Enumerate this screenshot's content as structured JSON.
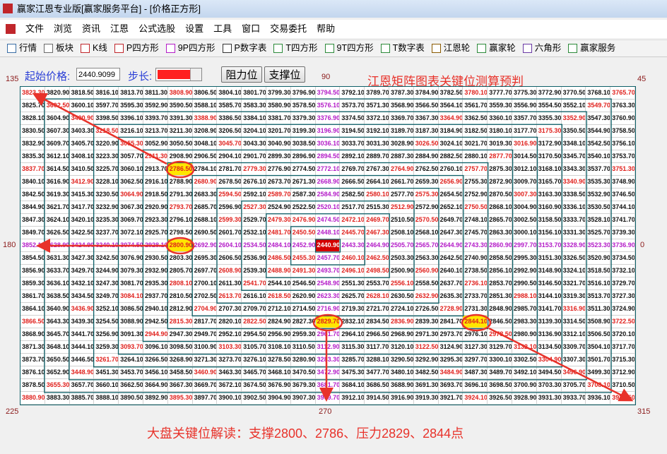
{
  "window": {
    "title": "赢家江恩专业版[赢家服务平台] - [价格正方形]"
  },
  "menu": [
    "文件",
    "浏览",
    "资讯",
    "江恩",
    "公式选股",
    "设置",
    "工具",
    "窗口",
    "交易委托",
    "帮助"
  ],
  "toolbar": [
    "行情",
    "板块",
    "K线",
    "P四方形",
    "9P四方形",
    "P数字表",
    "T四方形",
    "9T四方形",
    "T数字表",
    "江恩轮",
    "赢家轮",
    "六角形",
    "赢家服务"
  ],
  "controls": {
    "start_label": "起始价格:",
    "start_value": "2440.9099",
    "step_label": "步长:",
    "resistance_button": "阻力位",
    "support_button": "支撑位"
  },
  "angles": {
    "top_left": "135",
    "top": "90",
    "top_right": "45",
    "left": "180",
    "right": "0",
    "bottom_left": "225",
    "bottom": "270",
    "bottom_right": "315"
  },
  "annotations": {
    "heading": "江恩矩阵图表关键位测算预判",
    "footer": "大盘关键位解读：支撑2800、2786、压力2829、2844点"
  },
  "colors": {
    "default": "#111111",
    "cross": "#b41cc8",
    "angle": "#e0201c",
    "spiral": "#0d6068",
    "mark": "#e8322a",
    "highlight": "#ffe600",
    "center": "#d40000"
  },
  "grid": {
    "rows": [
      [
        "3823.30",
        "3820.90",
        "3818.50",
        "3816.10",
        "3813.70",
        "3811.30",
        "3808.90",
        "3806.50",
        "3804.10",
        "3801.70",
        "3799.30",
        "3796.90",
        "3794.50",
        "3792.10",
        "3789.70",
        "3787.30",
        "3784.90",
        "3782.50",
        "3780.10",
        "3777.70",
        "3775.30",
        "3772.90",
        "3770.50",
        "3768.10",
        "3765.70"
      ],
      [
        "3825.70",
        "3602.50",
        "3600.10",
        "3597.70",
        "3595.30",
        "3592.90",
        "3590.50",
        "3588.10",
        "3585.70",
        "3583.30",
        "3580.90",
        "3578.50",
        "3576.10",
        "3573.70",
        "3571.30",
        "3568.90",
        "3566.50",
        "3564.10",
        "3561.70",
        "3559.30",
        "3556.90",
        "3554.50",
        "3552.10",
        "3549.70",
        "3763.30"
      ],
      [
        "3828.10",
        "3604.90",
        "3400.90",
        "3398.50",
        "3396.10",
        "3393.70",
        "3391.30",
        "3388.90",
        "3386.50",
        "3384.10",
        "3381.70",
        "3379.30",
        "3376.90",
        "3374.50",
        "3372.10",
        "3369.70",
        "3367.30",
        "3364.90",
        "3362.50",
        "3360.10",
        "3357.70",
        "3355.30",
        "3352.90",
        "3547.30",
        "3760.90"
      ],
      [
        "3830.50",
        "3607.30",
        "3403.30",
        "3218.50",
        "3216.10",
        "3213.70",
        "3211.30",
        "3208.90",
        "3206.50",
        "3204.10",
        "3201.70",
        "3199.30",
        "3196.90",
        "3194.50",
        "3192.10",
        "3189.70",
        "3187.30",
        "3184.90",
        "3182.50",
        "3180.10",
        "3177.70",
        "3175.30",
        "3350.50",
        "3544.90",
        "3758.50"
      ],
      [
        "3832.90",
        "3609.70",
        "3405.70",
        "3220.90",
        "3055.30",
        "3052.90",
        "3050.50",
        "3048.10",
        "3045.70",
        "3043.30",
        "3040.90",
        "3038.50",
        "3036.10",
        "3033.70",
        "3031.30",
        "3028.90",
        "3026.50",
        "3024.10",
        "3021.70",
        "3019.30",
        "3016.90",
        "3172.90",
        "3348.10",
        "3542.50",
        "3756.10"
      ],
      [
        "3835.30",
        "3612.10",
        "3408.10",
        "3223.30",
        "3057.70",
        "2911.30",
        "2908.90",
        "2906.50",
        "2904.10",
        "2901.70",
        "2899.30",
        "2896.90",
        "2894.50",
        "2892.10",
        "2889.70",
        "2887.30",
        "2884.90",
        "2882.50",
        "2880.10",
        "2877.70",
        "3014.50",
        "3170.50",
        "3345.70",
        "3540.10",
        "3753.70"
      ],
      [
        "3837.70",
        "3614.50",
        "3410.50",
        "3225.70",
        "3060.10",
        "2913.70",
        "2786.50",
        "2784.10",
        "2781.70",
        "2779.30",
        "2776.90",
        "2774.50",
        "2772.10",
        "2769.70",
        "2767.30",
        "2764.90",
        "2762.50",
        "2760.10",
        "2757.70",
        "2875.30",
        "3012.10",
        "3168.10",
        "3343.30",
        "3537.70",
        "3751.30"
      ],
      [
        "3840.10",
        "3616.90",
        "3412.90",
        "3228.10",
        "3062.50",
        "2916.10",
        "2788.90",
        "2680.90",
        "2678.50",
        "2676.10",
        "2673.70",
        "2671.30",
        "2668.90",
        "2666.50",
        "2664.10",
        "2661.70",
        "2659.30",
        "2656.90",
        "2755.30",
        "2872.90",
        "3009.70",
        "3165.70",
        "3340.90",
        "3535.30",
        "3748.90"
      ],
      [
        "3842.50",
        "3619.30",
        "3415.30",
        "3230.50",
        "3064.90",
        "2918.50",
        "2791.30",
        "2683.30",
        "2594.50",
        "2592.10",
        "2589.70",
        "2587.30",
        "2584.90",
        "2582.50",
        "2580.10",
        "2577.70",
        "2575.30",
        "2654.50",
        "2752.90",
        "2870.50",
        "3007.30",
        "3163.30",
        "3338.50",
        "3532.90",
        "3746.50"
      ],
      [
        "3844.90",
        "3621.70",
        "3417.70",
        "3232.90",
        "3067.30",
        "2920.90",
        "2793.70",
        "2685.70",
        "2596.90",
        "2527.30",
        "2524.90",
        "2522.50",
        "2520.10",
        "2517.70",
        "2515.30",
        "2512.90",
        "2572.90",
        "2652.10",
        "2750.50",
        "2868.10",
        "3004.90",
        "3160.90",
        "3336.10",
        "3530.50",
        "3744.10"
      ],
      [
        "3847.30",
        "3624.10",
        "3420.10",
        "3235.30",
        "3069.70",
        "2923.30",
        "2796.10",
        "2688.10",
        "2599.30",
        "2529.70",
        "2479.30",
        "2476.90",
        "2474.50",
        "2472.10",
        "2469.70",
        "2510.50",
        "2570.50",
        "2649.70",
        "2748.10",
        "2865.70",
        "3002.50",
        "3158.50",
        "3333.70",
        "3528.10",
        "3741.70"
      ],
      [
        "3849.70",
        "3626.50",
        "3422.50",
        "3237.70",
        "3072.10",
        "2925.70",
        "2798.50",
        "2690.50",
        "2601.70",
        "2532.10",
        "2481.70",
        "2450.50",
        "2448.10",
        "2445.70",
        "2467.30",
        "2508.10",
        "2568.10",
        "2647.30",
        "2745.70",
        "2863.30",
        "3000.10",
        "3156.10",
        "3331.30",
        "3525.70",
        "3739.30"
      ],
      [
        "3852.10",
        "3628.90",
        "3424.90",
        "3240.10",
        "3074.50",
        "2928.10",
        "2800.90",
        "2692.90",
        "2604.10",
        "2534.50",
        "2484.10",
        "2452.90",
        "2440.90",
        "2443.30",
        "2464.90",
        "2505.70",
        "2565.70",
        "2644.90",
        "2743.30",
        "2860.90",
        "2997.70",
        "3153.70",
        "3328.90",
        "3523.30",
        "3736.90"
      ],
      [
        "3854.50",
        "3631.30",
        "3427.30",
        "3242.50",
        "3076.90",
        "2930.50",
        "2803.30",
        "2695.30",
        "2606.50",
        "2536.90",
        "2486.50",
        "2455.30",
        "2457.70",
        "2460.10",
        "2462.50",
        "2503.30",
        "2563.30",
        "2642.50",
        "2740.90",
        "2858.50",
        "2995.30",
        "3151.30",
        "3326.50",
        "3520.90",
        "3734.50"
      ],
      [
        "3856.90",
        "3633.70",
        "3429.70",
        "3244.90",
        "3079.30",
        "2932.90",
        "2805.70",
        "2697.70",
        "2608.90",
        "2539.30",
        "2488.90",
        "2491.30",
        "2493.70",
        "2496.10",
        "2498.50",
        "2500.90",
        "2560.90",
        "2640.10",
        "2738.50",
        "2856.10",
        "2992.90",
        "3148.90",
        "3324.10",
        "3518.50",
        "3732.10"
      ],
      [
        "3859.30",
        "3636.10",
        "3432.10",
        "3247.30",
        "3081.70",
        "2935.30",
        "2808.10",
        "2700.10",
        "2611.30",
        "2541.70",
        "2544.10",
        "2546.50",
        "2548.90",
        "2551.30",
        "2553.70",
        "2556.10",
        "2558.50",
        "2637.70",
        "2736.10",
        "2853.70",
        "2990.50",
        "3146.50",
        "3321.70",
        "3516.10",
        "3729.70"
      ],
      [
        "3861.70",
        "3638.50",
        "3434.50",
        "3249.70",
        "3084.10",
        "2937.70",
        "2810.50",
        "2702.50",
        "2613.70",
        "2616.10",
        "2618.50",
        "2620.90",
        "2623.30",
        "2625.70",
        "2628.10",
        "2630.50",
        "2632.90",
        "2635.30",
        "2733.70",
        "2851.30",
        "2988.10",
        "3144.10",
        "3319.30",
        "3513.70",
        "3727.30"
      ],
      [
        "3864.10",
        "3640.90",
        "3436.90",
        "3252.10",
        "3086.50",
        "2940.10",
        "2812.90",
        "2704.90",
        "2707.30",
        "2709.70",
        "2712.10",
        "2714.50",
        "2716.90",
        "2719.30",
        "2721.70",
        "2724.10",
        "2726.50",
        "2728.90",
        "2731.30",
        "2848.90",
        "2985.70",
        "3141.70",
        "3316.90",
        "3511.30",
        "3724.90"
      ],
      [
        "3866.50",
        "3643.30",
        "3439.30",
        "3254.50",
        "3088.90",
        "2942.50",
        "2815.30",
        "2817.70",
        "2820.10",
        "2822.50",
        "2824.90",
        "2827.30",
        "2829.70",
        "2832.10",
        "2834.50",
        "2836.90",
        "2839.30",
        "2841.70",
        "2844.10",
        "2846.50",
        "2983.30",
        "3139.30",
        "3314.50",
        "3508.90",
        "3722.50"
      ],
      [
        "3868.90",
        "3645.70",
        "3441.70",
        "3256.90",
        "3091.30",
        "2944.90",
        "2947.30",
        "2949.70",
        "2952.10",
        "2954.50",
        "2956.90",
        "2959.30",
        "2961.70",
        "2964.10",
        "2966.50",
        "2968.90",
        "2971.30",
        "2973.70",
        "2976.10",
        "2978.50",
        "2980.90",
        "3136.90",
        "3312.10",
        "3506.50",
        "3720.10"
      ],
      [
        "3871.30",
        "3648.10",
        "3444.10",
        "3259.30",
        "3093.70",
        "3096.10",
        "3098.50",
        "3100.90",
        "3103.30",
        "3105.70",
        "3108.10",
        "3110.50",
        "3112.90",
        "3115.30",
        "3117.70",
        "3120.10",
        "3122.50",
        "3124.90",
        "3127.30",
        "3129.70",
        "3132.10",
        "3134.50",
        "3309.70",
        "3504.10",
        "3717.70"
      ],
      [
        "3873.70",
        "3650.50",
        "3446.50",
        "3261.70",
        "3264.10",
        "3266.50",
        "3268.90",
        "3271.30",
        "3273.70",
        "3276.10",
        "3278.50",
        "3280.90",
        "3283.30",
        "3285.70",
        "3288.10",
        "3290.50",
        "3292.90",
        "3295.30",
        "3297.70",
        "3300.10",
        "3302.50",
        "3304.90",
        "3307.30",
        "3501.70",
        "3715.30"
      ],
      [
        "3876.10",
        "3652.90",
        "3448.90",
        "3451.30",
        "3453.70",
        "3456.10",
        "3458.50",
        "3460.90",
        "3463.30",
        "3465.70",
        "3468.10",
        "3470.50",
        "3472.90",
        "3475.30",
        "3477.70",
        "3480.10",
        "3482.50",
        "3484.90",
        "3487.30",
        "3489.70",
        "3492.10",
        "3494.50",
        "3496.90",
        "3499.30",
        "3712.90"
      ],
      [
        "3878.50",
        "3655.30",
        "3657.70",
        "3660.10",
        "3662.50",
        "3664.90",
        "3667.30",
        "3669.70",
        "3672.10",
        "3674.50",
        "3676.90",
        "3679.30",
        "3681.70",
        "3684.10",
        "3686.50",
        "3688.90",
        "3691.30",
        "3693.70",
        "3696.10",
        "3698.50",
        "3700.90",
        "3703.30",
        "3705.70",
        "3708.10",
        "3710.50"
      ],
      [
        "3880.90",
        "3883.30",
        "3885.70",
        "3888.10",
        "3890.50",
        "3892.90",
        "3895.30",
        "3897.70",
        "3900.10",
        "3902.50",
        "3904.90",
        "3907.30",
        "3909.70",
        "3912.10",
        "3914.50",
        "3916.90",
        "3919.30",
        "3921.70",
        "3924.10",
        "3926.50",
        "3928.90",
        "3931.30",
        "3933.70",
        "3936.10",
        "3938.50"
      ]
    ]
  }
}
